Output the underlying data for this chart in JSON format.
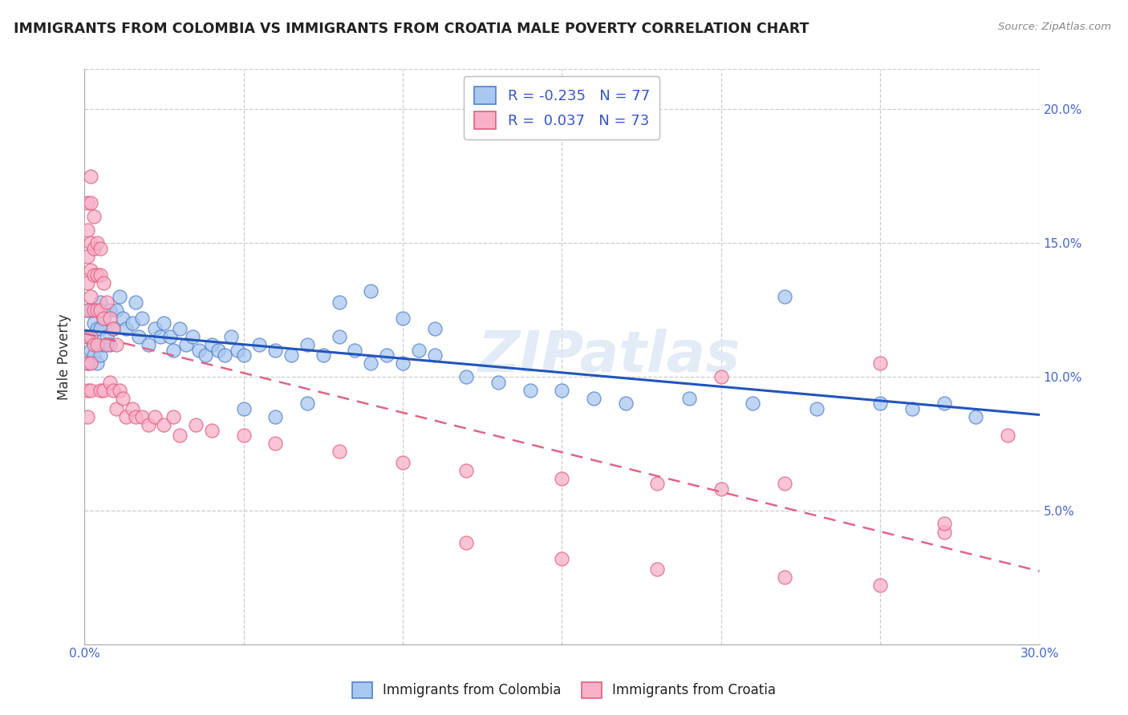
{
  "title": "IMMIGRANTS FROM COLOMBIA VS IMMIGRANTS FROM CROATIA MALE POVERTY CORRELATION CHART",
  "source": "Source: ZipAtlas.com",
  "ylabel": "Male Poverty",
  "xlim": [
    0.0,
    0.3
  ],
  "ylim": [
    0.0,
    0.215
  ],
  "xticks": [
    0.0,
    0.05,
    0.1,
    0.15,
    0.2,
    0.25,
    0.3
  ],
  "yticks": [
    0.05,
    0.1,
    0.15,
    0.2
  ],
  "ytick_labels": [
    "5.0%",
    "10.0%",
    "15.0%",
    "20.0%"
  ],
  "colombia_R": -0.235,
  "colombia_N": 77,
  "croatia_R": 0.037,
  "croatia_N": 73,
  "colombia_color": "#a8c8f0",
  "croatia_color": "#f8b0c8",
  "colombia_edge_color": "#5580cc",
  "croatia_edge_color": "#e06080",
  "colombia_line_color": "#2255bb",
  "croatia_line_color": "#dd6688",
  "watermark": "ZIPatlas",
  "colombia_x": [
    0.001,
    0.001,
    0.001,
    0.002,
    0.002,
    0.002,
    0.003,
    0.003,
    0.004,
    0.004,
    0.005,
    0.005,
    0.005,
    0.006,
    0.006,
    0.007,
    0.008,
    0.008,
    0.009,
    0.01,
    0.011,
    0.012,
    0.013,
    0.015,
    0.016,
    0.017,
    0.018,
    0.02,
    0.022,
    0.024,
    0.025,
    0.027,
    0.028,
    0.03,
    0.032,
    0.034,
    0.036,
    0.038,
    0.04,
    0.042,
    0.044,
    0.046,
    0.048,
    0.05,
    0.055,
    0.06,
    0.065,
    0.07,
    0.075,
    0.08,
    0.085,
    0.09,
    0.095,
    0.1,
    0.105,
    0.11,
    0.12,
    0.13,
    0.14,
    0.15,
    0.16,
    0.17,
    0.19,
    0.21,
    0.22,
    0.23,
    0.25,
    0.26,
    0.27,
    0.28,
    0.05,
    0.06,
    0.07,
    0.08,
    0.09,
    0.1,
    0.11
  ],
  "colombia_y": [
    0.125,
    0.115,
    0.105,
    0.125,
    0.115,
    0.11,
    0.12,
    0.108,
    0.118,
    0.105,
    0.128,
    0.118,
    0.108,
    0.122,
    0.112,
    0.115,
    0.125,
    0.112,
    0.118,
    0.125,
    0.13,
    0.122,
    0.118,
    0.12,
    0.128,
    0.115,
    0.122,
    0.112,
    0.118,
    0.115,
    0.12,
    0.115,
    0.11,
    0.118,
    0.112,
    0.115,
    0.11,
    0.108,
    0.112,
    0.11,
    0.108,
    0.115,
    0.11,
    0.108,
    0.112,
    0.11,
    0.108,
    0.112,
    0.108,
    0.115,
    0.11,
    0.105,
    0.108,
    0.105,
    0.11,
    0.108,
    0.1,
    0.098,
    0.095,
    0.095,
    0.092,
    0.09,
    0.092,
    0.09,
    0.13,
    0.088,
    0.09,
    0.088,
    0.09,
    0.085,
    0.088,
    0.085,
    0.09,
    0.128,
    0.132,
    0.122,
    0.118
  ],
  "croatia_x": [
    0.001,
    0.001,
    0.001,
    0.001,
    0.001,
    0.001,
    0.001,
    0.001,
    0.001,
    0.002,
    0.002,
    0.002,
    0.002,
    0.002,
    0.002,
    0.002,
    0.002,
    0.003,
    0.003,
    0.003,
    0.003,
    0.003,
    0.004,
    0.004,
    0.004,
    0.004,
    0.005,
    0.005,
    0.005,
    0.005,
    0.006,
    0.006,
    0.006,
    0.007,
    0.007,
    0.008,
    0.008,
    0.009,
    0.009,
    0.01,
    0.01,
    0.011,
    0.012,
    0.013,
    0.015,
    0.016,
    0.018,
    0.02,
    0.022,
    0.025,
    0.028,
    0.03,
    0.035,
    0.04,
    0.05,
    0.06,
    0.08,
    0.1,
    0.12,
    0.15,
    0.18,
    0.2,
    0.22,
    0.25,
    0.27,
    0.29,
    0.12,
    0.15,
    0.18,
    0.2,
    0.22,
    0.25,
    0.27
  ],
  "croatia_y": [
    0.165,
    0.155,
    0.145,
    0.135,
    0.125,
    0.115,
    0.105,
    0.095,
    0.085,
    0.175,
    0.165,
    0.15,
    0.14,
    0.13,
    0.115,
    0.105,
    0.095,
    0.16,
    0.148,
    0.138,
    0.125,
    0.112,
    0.15,
    0.138,
    0.125,
    0.112,
    0.148,
    0.138,
    0.125,
    0.095,
    0.135,
    0.122,
    0.095,
    0.128,
    0.112,
    0.122,
    0.098,
    0.118,
    0.095,
    0.112,
    0.088,
    0.095,
    0.092,
    0.085,
    0.088,
    0.085,
    0.085,
    0.082,
    0.085,
    0.082,
    0.085,
    0.078,
    0.082,
    0.08,
    0.078,
    0.075,
    0.072,
    0.068,
    0.065,
    0.062,
    0.06,
    0.058,
    0.06,
    0.105,
    0.042,
    0.078,
    0.038,
    0.032,
    0.028,
    0.1,
    0.025,
    0.022,
    0.045
  ]
}
